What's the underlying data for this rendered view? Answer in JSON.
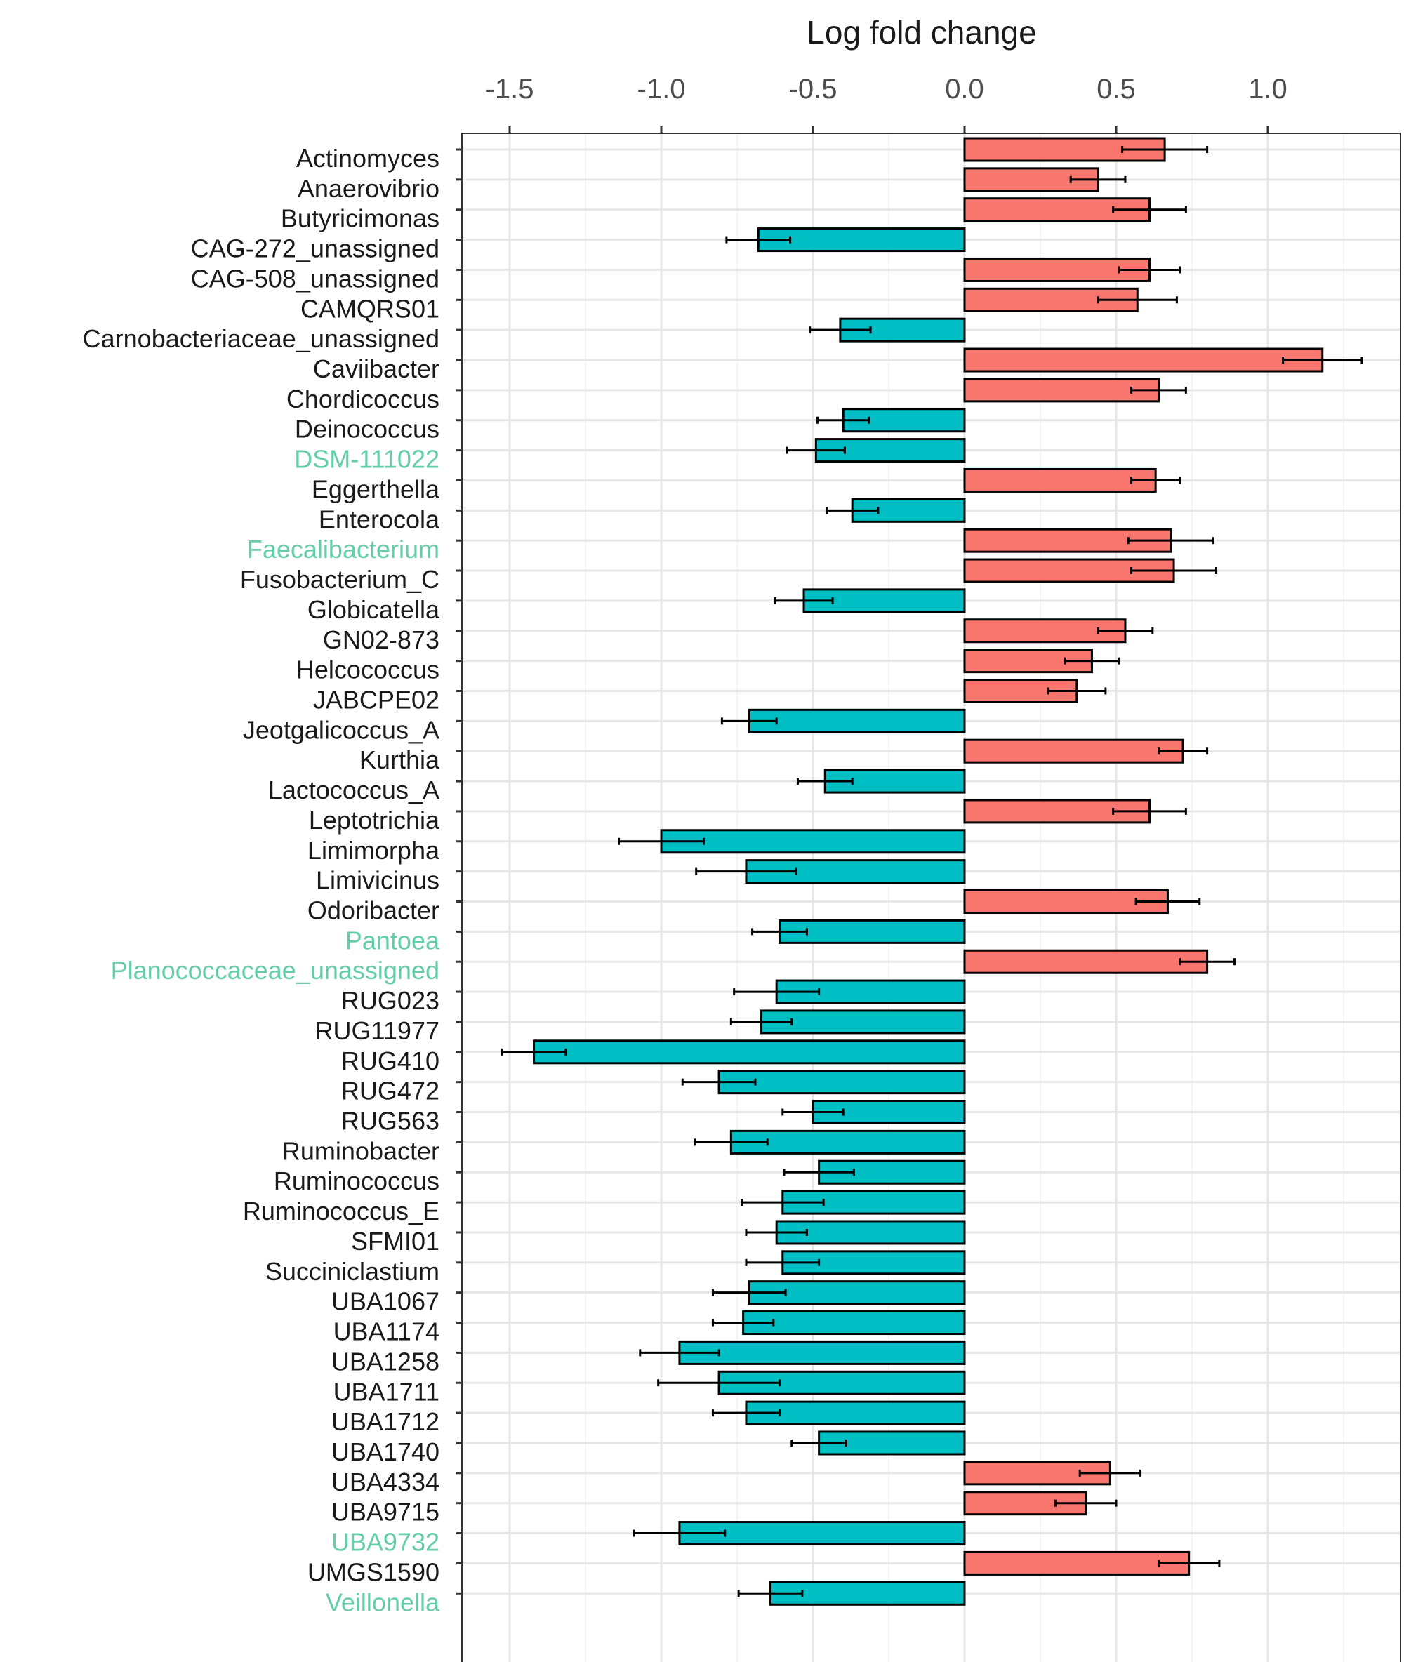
{
  "chart_data": {
    "type": "bar",
    "orientation": "horizontal",
    "title": "",
    "xlabel": "Log fold change",
    "ylabel": "",
    "xlim": [
      -1.66,
      1.43
    ],
    "xticks": [
      -1.5,
      -1.0,
      -0.5,
      0.0,
      0.5,
      1.0
    ],
    "xtick_labels": [
      "-1.5",
      "-1.0",
      "-0.5",
      "0.0",
      "0.5",
      "1.0"
    ],
    "x_axis_position": "top",
    "grid": true,
    "colors": {
      "positive": "#F8766D",
      "negative": "#00BFC4",
      "highlight_label": "#66CDAA",
      "label": "#1a1a1a"
    },
    "categories": [
      "Actinomyces",
      "Anaerovibrio",
      "Butyricimonas",
      "CAG-272_unassigned",
      "CAG-508_unassigned",
      "CAMQRS01",
      "Carnobacteriaceae_unassigned",
      "Caviibacter",
      "Chordicoccus",
      "Deinococcus",
      "DSM-111022",
      "Eggerthella",
      "Enterocola",
      "Faecalibacterium",
      "Fusobacterium_C",
      "Globicatella",
      "GN02-873",
      "Helcococcus",
      "JABCPE02",
      "Jeotgalicoccus_A",
      "Kurthia",
      "Lactococcus_A",
      "Leptotrichia",
      "Limimorpha",
      "Limivicinus",
      "Odoribacter",
      "Pantoea",
      "Planococcaceae_unassigned",
      "RUG023",
      "RUG11977",
      "RUG410",
      "RUG472",
      "RUG563",
      "Ruminobacter",
      "Ruminococcus",
      "Ruminococcus_E",
      "SFMI01",
      "Succiniclastium",
      "UBA1067",
      "UBA1174",
      "UBA1258",
      "UBA1711",
      "UBA1712",
      "UBA1740",
      "UBA4334",
      "UBA9715",
      "UBA9732",
      "UMGS1590",
      "Veillonella"
    ],
    "highlighted": [
      "DSM-111022",
      "Faecalibacterium",
      "Pantoea",
      "Planococcaceae_unassigned",
      "UBA9732",
      "Veillonella"
    ],
    "values": [
      0.66,
      0.44,
      0.61,
      -0.68,
      0.61,
      0.57,
      -0.41,
      1.18,
      0.64,
      -0.4,
      -0.49,
      0.63,
      -0.37,
      0.68,
      0.69,
      -0.53,
      0.53,
      0.42,
      0.37,
      -0.71,
      0.72,
      -0.46,
      0.61,
      -1.0,
      -0.72,
      0.67,
      -0.61,
      0.8,
      -0.62,
      -0.67,
      -1.42,
      -0.81,
      -0.5,
      -0.77,
      -0.48,
      -0.6,
      -0.62,
      -0.6,
      -0.71,
      -0.73,
      -0.94,
      -0.81,
      -0.72,
      -0.48,
      0.48,
      0.4,
      -0.94,
      0.74,
      -0.64
    ],
    "errors": [
      0.14,
      0.09,
      0.12,
      0.105,
      0.1,
      0.13,
      0.1,
      0.13,
      0.09,
      0.085,
      0.095,
      0.08,
      0.085,
      0.14,
      0.14,
      0.095,
      0.09,
      0.09,
      0.095,
      0.09,
      0.08,
      0.09,
      0.12,
      0.14,
      0.165,
      0.105,
      0.09,
      0.09,
      0.14,
      0.1,
      0.105,
      0.12,
      0.1,
      0.12,
      0.115,
      0.135,
      0.1,
      0.12,
      0.12,
      0.1,
      0.13,
      0.2,
      0.11,
      0.09,
      0.1,
      0.1,
      0.15,
      0.1,
      0.105
    ]
  }
}
